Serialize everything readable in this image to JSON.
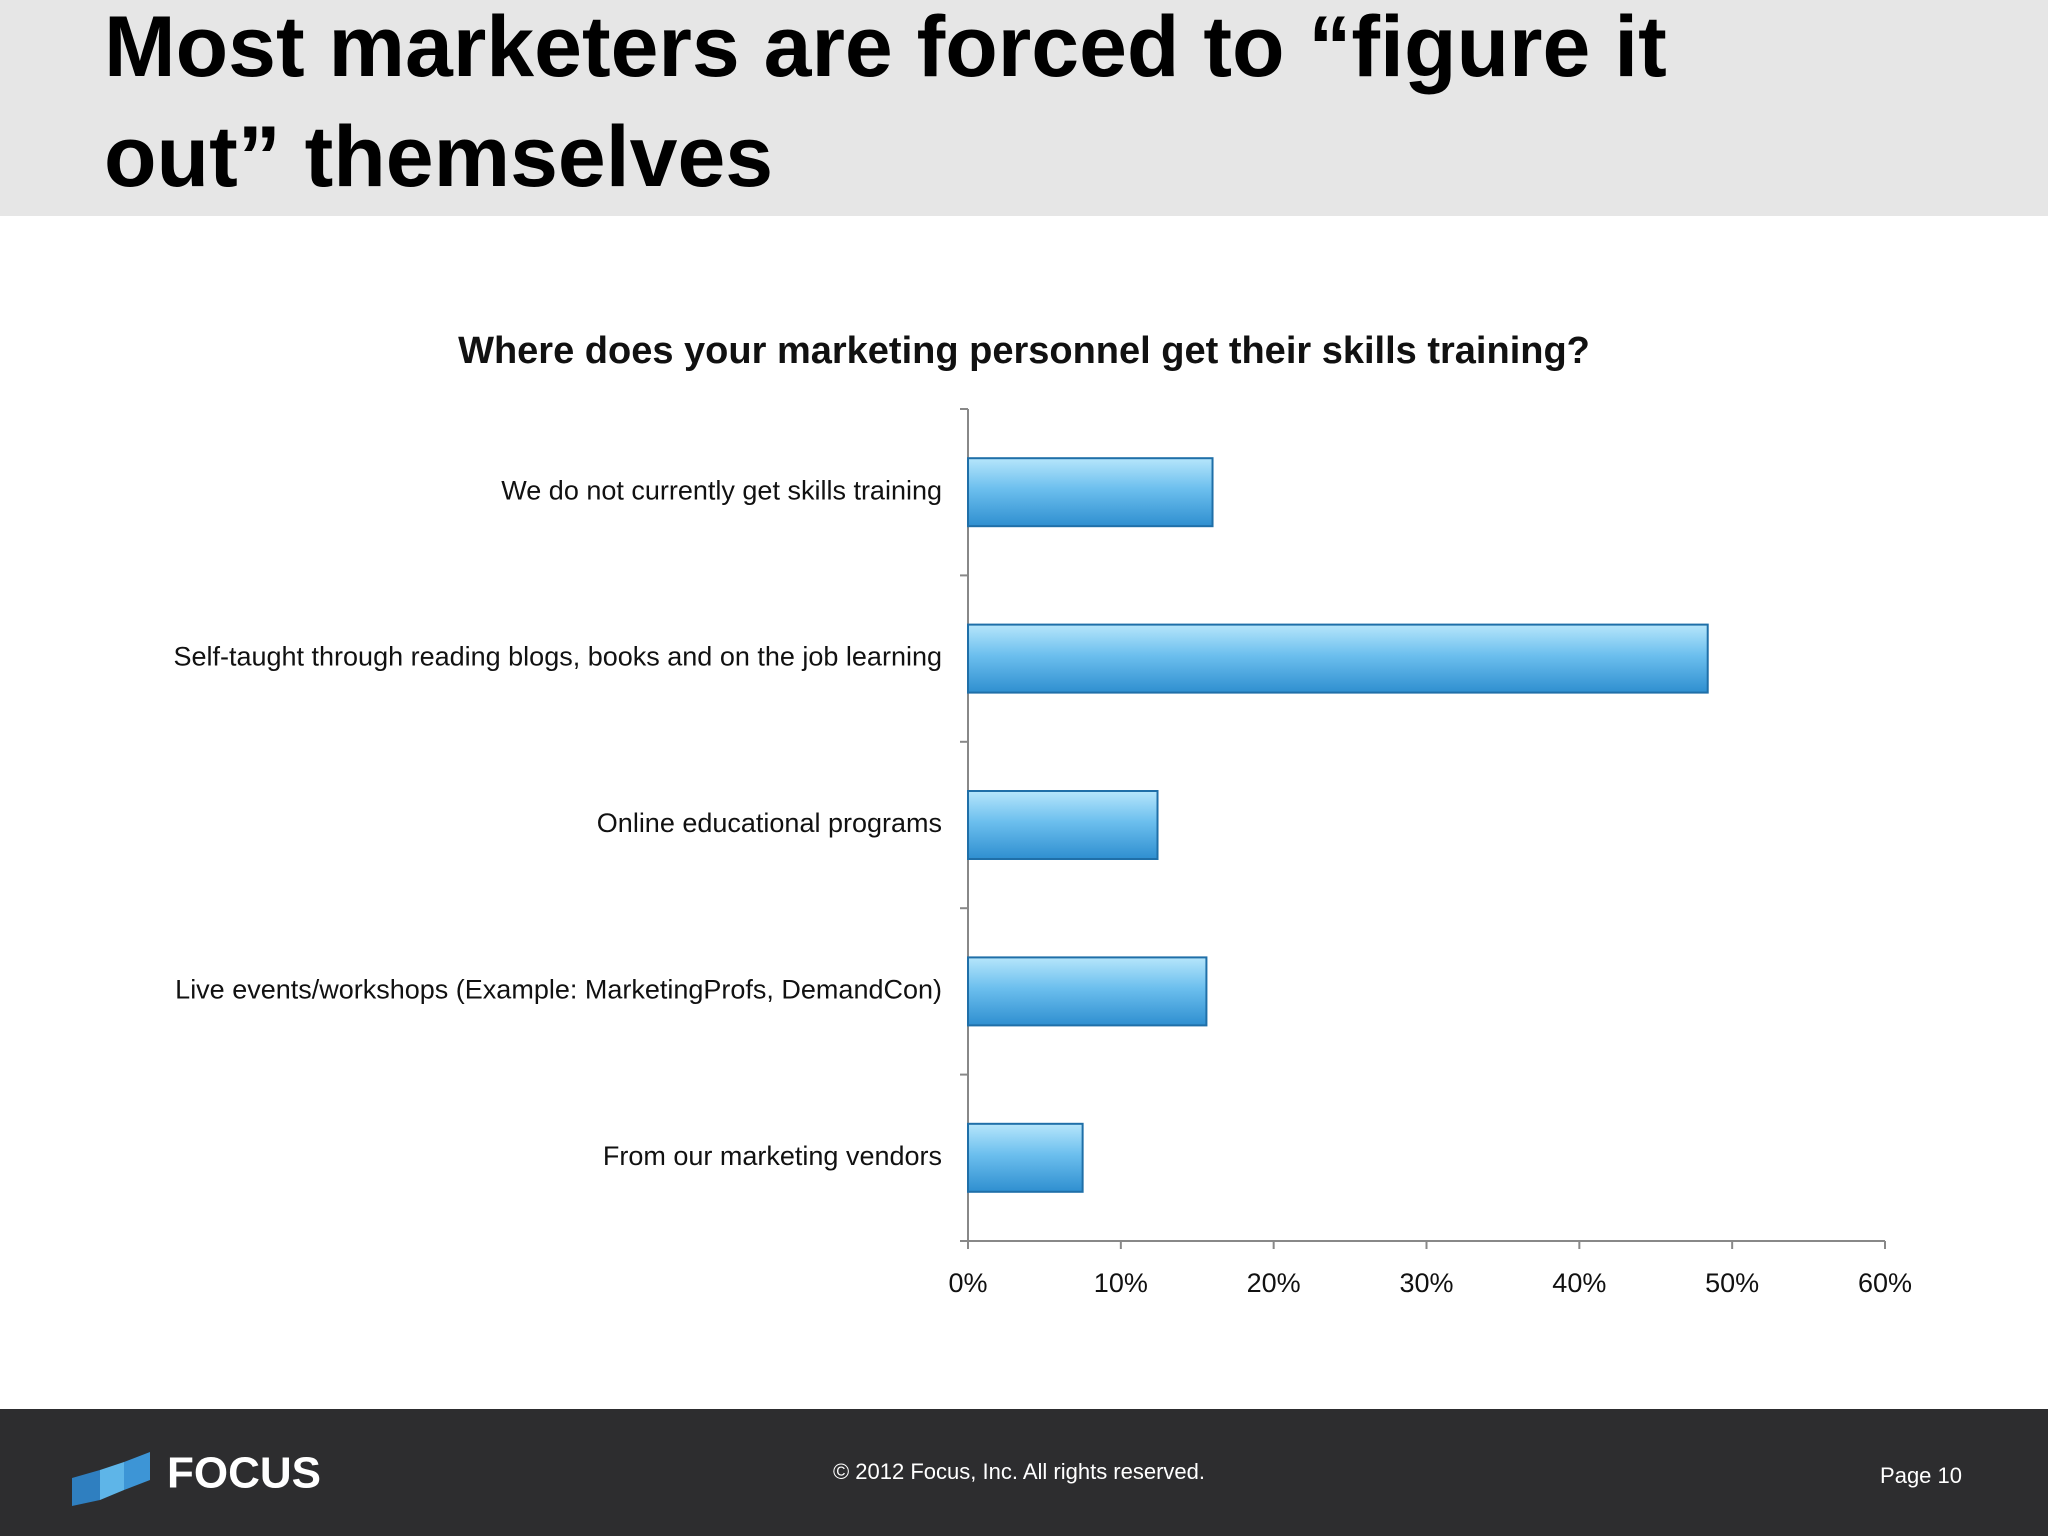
{
  "header": {
    "title": "Most marketers are forced to “figure it out” themselves"
  },
  "chart_data": {
    "type": "bar",
    "orientation": "horizontal",
    "title": "Where does your marketing personnel get their skills training?",
    "categories": [
      "We do not currently get skills training",
      "Self-taught through reading blogs, books and on the job learning",
      "Online educational programs",
      "Live events/workshops (Example: MarketingProfs, DemandCon)",
      "From our marketing vendors"
    ],
    "values": [
      16.0,
      48.4,
      12.4,
      15.6,
      7.5
    ],
    "color": "#4aa8e0",
    "xlim": [
      0,
      60
    ],
    "xticks": [
      {
        "value": 0,
        "label": "0%"
      },
      {
        "value": 10,
        "label": "10%"
      },
      {
        "value": 20,
        "label": "20%"
      },
      {
        "value": 30,
        "label": "30%"
      },
      {
        "value": 40,
        "label": "40%"
      },
      {
        "value": 50,
        "label": "50%"
      },
      {
        "value": 60,
        "label": "60%"
      }
    ],
    "grid": false
  },
  "footer": {
    "logo": "FOCUS",
    "copyright": "© 2012 Focus, Inc. All rights reserved.",
    "page": "Page 10"
  }
}
